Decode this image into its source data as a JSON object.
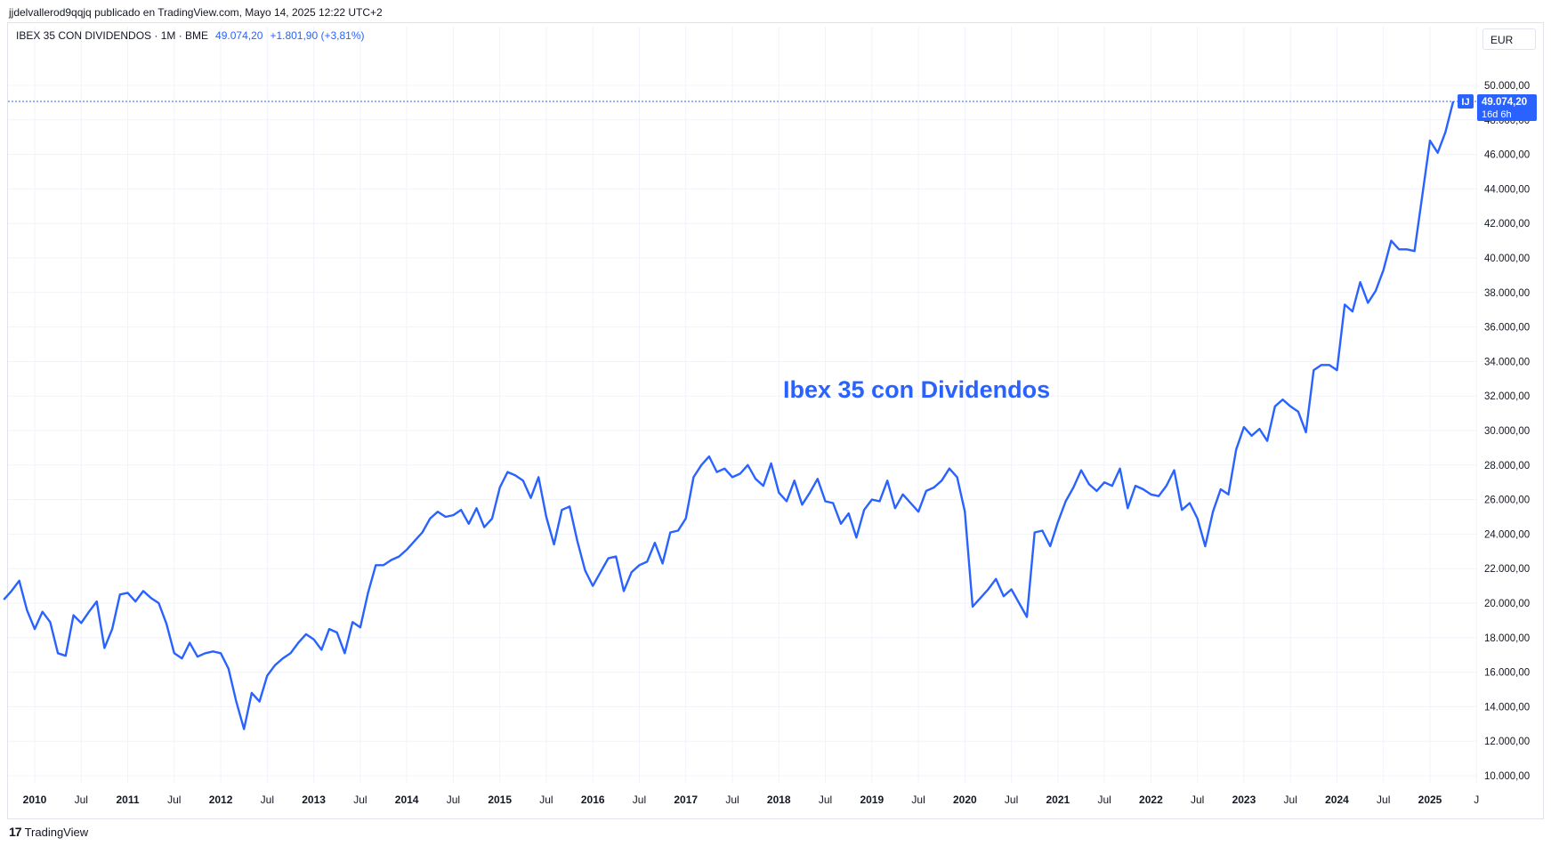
{
  "header": {
    "publisher": "jjdelvallerod9qqjq publicado en TradingView.com, Mayo 14, 2025 12:22 UTC+2"
  },
  "legend": {
    "symbol": "IBEX 35 CON DIVIDENDOS · 1M · BME",
    "value": "49.074,20",
    "change": "+1.801,90 (+3,81%)"
  },
  "currency_button": "EUR",
  "price_label": {
    "badge": "IJ",
    "value": "49.074,20",
    "countdown": "16d 6h"
  },
  "watermark": "Ibex 35 con Dividendos",
  "footer": {
    "brand": "TradingView"
  },
  "colors": {
    "line": "#2962ff",
    "grid": "#f0f3fa",
    "text": "#131722",
    "label_bg": "#2962ff"
  },
  "chart_data": {
    "type": "line",
    "title": "Ibex 35 con Dividendos",
    "xlabel": "",
    "ylabel": "",
    "ylim": [
      10000,
      50000
    ],
    "grid": true,
    "y_ticks": [
      "10.000,00",
      "12.000,00",
      "14.000,00",
      "16.000,00",
      "18.000,00",
      "20.000,00",
      "22.000,00",
      "24.000,00",
      "26.000,00",
      "28.000,00",
      "30.000,00",
      "32.000,00",
      "34.000,00",
      "36.000,00",
      "38.000,00",
      "40.000,00",
      "42.000,00",
      "44.000,00",
      "46.000,00",
      "48.000,00",
      "50.000,00"
    ],
    "x_ticks": [
      {
        "label": "2010",
        "t": 2010.0
      },
      {
        "label": "Jul",
        "t": 2010.5
      },
      {
        "label": "2011",
        "t": 2011.0
      },
      {
        "label": "Jul",
        "t": 2011.5
      },
      {
        "label": "2012",
        "t": 2012.0
      },
      {
        "label": "Jul",
        "t": 2012.5
      },
      {
        "label": "2013",
        "t": 2013.0
      },
      {
        "label": "Jul",
        "t": 2013.5
      },
      {
        "label": "2014",
        "t": 2014.0
      },
      {
        "label": "Jul",
        "t": 2014.5
      },
      {
        "label": "2015",
        "t": 2015.0
      },
      {
        "label": "Jul",
        "t": 2015.5
      },
      {
        "label": "2016",
        "t": 2016.0
      },
      {
        "label": "Jul",
        "t": 2016.5
      },
      {
        "label": "2017",
        "t": 2017.0
      },
      {
        "label": "Jul",
        "t": 2017.5
      },
      {
        "label": "2018",
        "t": 2018.0
      },
      {
        "label": "Jul",
        "t": 2018.5
      },
      {
        "label": "2019",
        "t": 2019.0
      },
      {
        "label": "Jul",
        "t": 2019.5
      },
      {
        "label": "2020",
        "t": 2020.0
      },
      {
        "label": "Jul",
        "t": 2020.5
      },
      {
        "label": "2021",
        "t": 2021.0
      },
      {
        "label": "Jul",
        "t": 2021.5
      },
      {
        "label": "2022",
        "t": 2022.0
      },
      {
        "label": "Jul",
        "t": 2022.5
      },
      {
        "label": "2023",
        "t": 2023.0
      },
      {
        "label": "Jul",
        "t": 2023.5
      },
      {
        "label": "2024",
        "t": 2024.0
      },
      {
        "label": "Jul",
        "t": 2024.5
      },
      {
        "label": "2025",
        "t": 2025.0
      },
      {
        "label": "J",
        "t": 2025.5
      }
    ],
    "series": [
      {
        "start": "2009-09",
        "values": [
          20200,
          20700,
          21300,
          19600,
          18500,
          19500,
          18900,
          17100,
          16950,
          19300,
          18850,
          19500,
          20100,
          17400,
          18500,
          20500,
          20600,
          20100,
          20700,
          20300,
          20000,
          18800,
          17100,
          16800,
          17700,
          16900,
          17100,
          17200,
          17100,
          16200,
          14300,
          12700,
          14800,
          14300,
          15800,
          16400,
          16800,
          17100,
          17700,
          18200,
          17900,
          17300,
          18500,
          18300,
          17100,
          18900,
          18600,
          20600,
          22200,
          22200,
          22500,
          22700,
          23100,
          23600,
          24100,
          24900,
          25300,
          25000,
          25100,
          25400,
          24600,
          25500,
          24400,
          24900,
          26700,
          27600,
          27400,
          27100,
          26100,
          27300,
          25000,
          23400,
          25400,
          25600,
          23600,
          21900,
          21000,
          21800,
          22600,
          22700,
          20700,
          21800,
          22200,
          22400,
          23500,
          22300,
          24100,
          24200,
          24900,
          27300,
          28000,
          28500,
          27600,
          27800,
          27300,
          27500,
          28000,
          27200,
          26800,
          28100,
          26400,
          25900,
          27100,
          25700,
          26400,
          27200,
          25900,
          25800,
          24600,
          25200,
          23800,
          25400,
          26000,
          25900,
          27100,
          25500,
          26300,
          25800,
          25300,
          26500,
          26700,
          27100,
          27800,
          27300,
          25300,
          19800,
          20300,
          20800,
          21400,
          20400,
          20800,
          20000,
          19200,
          24100,
          24200,
          23300,
          24700,
          25900,
          26700,
          27700,
          26900,
          26500,
          27000,
          26800,
          27800,
          25500,
          26800,
          26600,
          26300,
          26200,
          26800,
          27700,
          25400,
          25800,
          24900,
          23300,
          25300,
          26600,
          26300,
          28900,
          30200,
          29700,
          30100,
          29400,
          31400,
          31800,
          31400,
          31100,
          29900,
          33500,
          33800,
          33800,
          33500,
          37300,
          36900,
          38600,
          37400,
          38100,
          39300,
          41000,
          40500,
          40500,
          40400,
          43600,
          46800,
          46100,
          47300,
          49074
        ]
      }
    ]
  }
}
